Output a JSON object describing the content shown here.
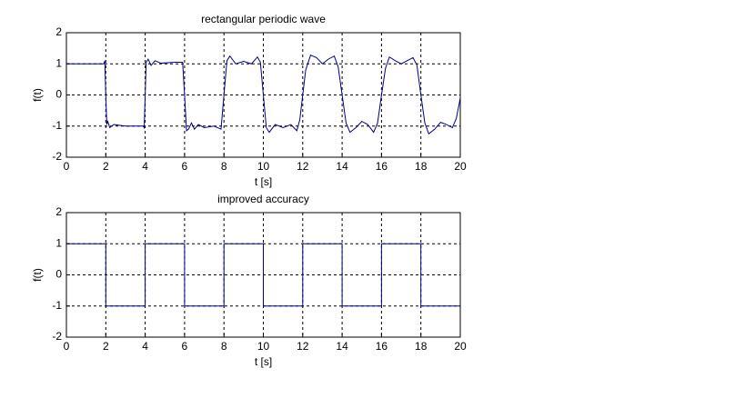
{
  "chart_data": [
    {
      "type": "line",
      "title": "rectangular periodic wave",
      "x_label": "t [s]",
      "y_label": "f(t)",
      "color": "#00008b",
      "x": [
        0,
        1.9,
        1.95,
        2.0,
        2.05,
        2.1,
        2.2,
        2.4,
        3.0,
        3.9,
        3.95,
        4.0,
        4.05,
        4.15,
        4.3,
        4.5,
        4.8,
        5.5,
        5.9,
        6.0,
        6.1,
        6.2,
        6.35,
        6.5,
        6.7,
        7.0,
        7.5,
        7.85,
        8.0,
        8.15,
        8.3,
        8.6,
        9.0,
        9.4,
        9.7,
        9.85,
        10.0,
        10.15,
        10.3,
        10.6,
        11.0,
        11.4,
        11.7,
        11.85,
        12.0,
        12.15,
        12.4,
        12.7,
        13.0,
        13.3,
        13.6,
        13.8,
        14.0,
        14.2,
        14.4,
        14.7,
        15.0,
        15.3,
        15.6,
        15.8,
        16.0,
        16.2,
        16.4,
        16.7,
        17.0,
        17.3,
        17.6,
        17.8,
        18.0,
        18.2,
        18.4,
        18.7,
        19.0,
        19.3,
        19.6,
        19.8,
        20
      ],
      "values": [
        1,
        1,
        1.1,
        0,
        -0.95,
        -0.85,
        -1.05,
        -0.95,
        -1,
        -1,
        -1.05,
        0,
        1.05,
        1.15,
        0.95,
        1.1,
        1.02,
        1.05,
        1.05,
        0,
        -1.15,
        -1.1,
        -0.9,
        -1.1,
        -0.95,
        -1.05,
        -1.0,
        -1.1,
        0,
        1.1,
        1.25,
        1.0,
        1.08,
        1.0,
        1.22,
        1.05,
        0,
        -1.05,
        -1.2,
        -0.95,
        -1.05,
        -0.95,
        -1.15,
        -0.8,
        0,
        0.8,
        1.28,
        1.2,
        1.0,
        1.15,
        1.25,
        0.9,
        0,
        -0.9,
        -1.2,
        -1.05,
        -0.85,
        -0.95,
        -1.2,
        -0.9,
        0,
        0.85,
        1.22,
        1.1,
        1.0,
        1.1,
        1.2,
        0.95,
        0,
        -0.9,
        -1.25,
        -1.1,
        -0.88,
        -0.95,
        -1.05,
        -0.75,
        -0.1
      ],
      "xlim": [
        0,
        20
      ],
      "xticks": [
        0,
        2,
        4,
        6,
        8,
        10,
        12,
        14,
        16,
        18,
        20
      ],
      "ylim": [
        -2,
        2
      ],
      "yticks": [
        -2,
        -1,
        0,
        1,
        2
      ],
      "grid": true
    },
    {
      "type": "line",
      "title": "improved accuracy",
      "x_label": "t [s]",
      "y_label": "f(t)",
      "color": "#00008b",
      "x": [
        0,
        2,
        2,
        4,
        4,
        6,
        6,
        8,
        8,
        10,
        10,
        12,
        12,
        14,
        14,
        16,
        16,
        18,
        18,
        20,
        20
      ],
      "values": [
        1,
        1,
        -1,
        -1,
        1,
        1,
        -1,
        -1,
        1,
        1,
        -1,
        -1,
        1,
        1,
        -1,
        -1,
        1,
        1,
        -1,
        -1,
        -0.2
      ],
      "xlim": [
        0,
        20
      ],
      "xticks": [
        0,
        2,
        4,
        6,
        8,
        10,
        12,
        14,
        16,
        18,
        20
      ],
      "ylim": [
        -2,
        2
      ],
      "yticks": [
        -2,
        -1,
        0,
        1,
        2
      ],
      "grid": true
    }
  ]
}
